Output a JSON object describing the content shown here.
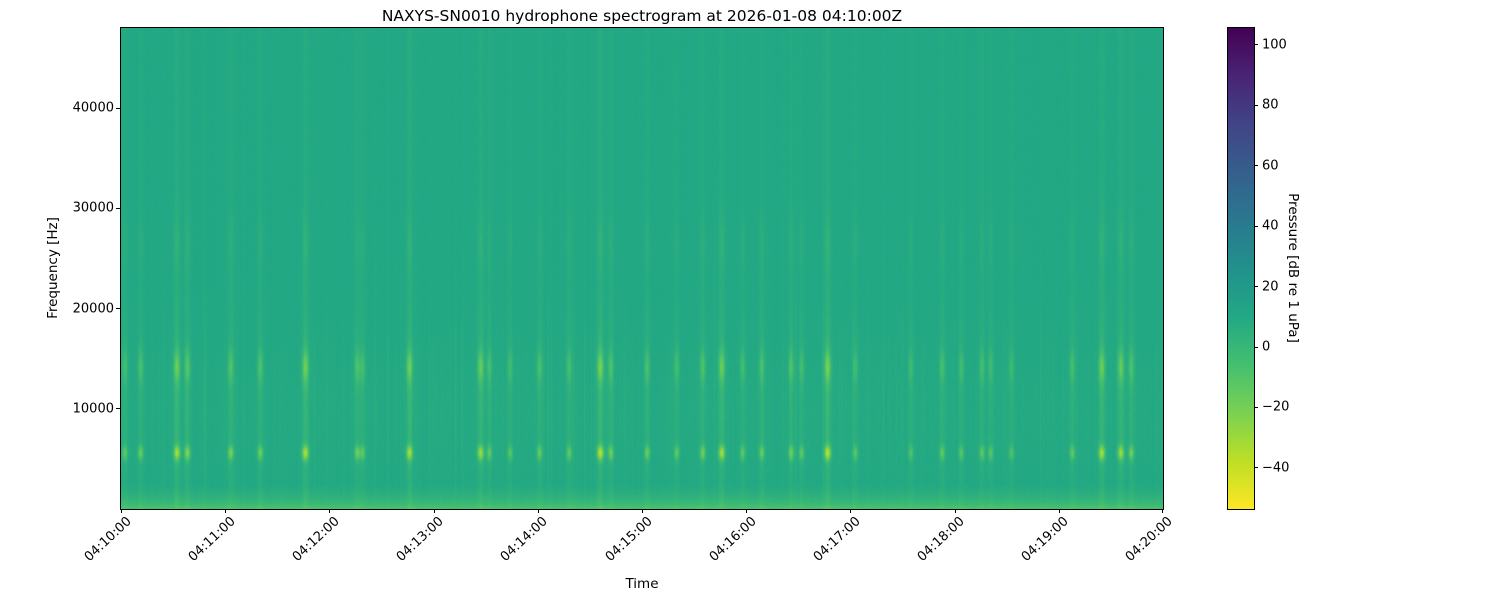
{
  "chart_data": {
    "type": "heatmap",
    "subtype": "spectrogram",
    "title": "NAXYS-SN0010 hydrophone spectrogram at 2026-01-08 04:10:00Z",
    "xlabel": "Time",
    "ylabel": "Frequency [Hz]",
    "x_tick_labels": [
      "04:10:00",
      "04:11:00",
      "04:12:00",
      "04:13:00",
      "04:14:00",
      "04:15:00",
      "04:16:00",
      "04:17:00",
      "04:18:00",
      "04:19:00",
      "04:20:00"
    ],
    "y_tick_values": [
      10000,
      20000,
      30000,
      40000
    ],
    "y_tick_labels": [
      "10000",
      "20000",
      "30000",
      "40000"
    ],
    "freq_range_hz": [
      0,
      48000
    ],
    "duration_s": 600,
    "start_time_label": "04:10:00",
    "grid": false,
    "legend": "none",
    "colorbar": {
      "label": "Pressure [dB re 1 uPa]",
      "tick_values": [
        100,
        80,
        60,
        40,
        20,
        0,
        -20,
        -40
      ],
      "tick_labels": [
        "100",
        "80",
        "60",
        "40",
        "20",
        "0",
        "−20",
        "−40"
      ],
      "vmin": -53.6,
      "vmax": 105.6,
      "colormap": "viridis",
      "colormap_stops": [
        [
          68,
          1,
          84
        ],
        [
          72,
          36,
          117
        ],
        [
          65,
          68,
          135
        ],
        [
          53,
          95,
          141
        ],
        [
          42,
          120,
          142
        ],
        [
          33,
          145,
          140
        ],
        [
          34,
          168,
          132
        ],
        [
          68,
          191,
          112
        ],
        [
          122,
          209,
          81
        ],
        [
          189,
          223,
          38
        ],
        [
          253,
          231,
          37
        ]
      ]
    },
    "background_level_db": 42,
    "bottom_band": {
      "max_freq_hz": 2600,
      "peak_boost_db": 15
    },
    "event_bands_hz": {
      "primary_center": 5600,
      "secondary_center": 14200,
      "tertiary_center": 26500
    },
    "events": [
      [
        2,
        0.5
      ],
      [
        11,
        0.55
      ],
      [
        32,
        0.9
      ],
      [
        38,
        0.7
      ],
      [
        63,
        0.65
      ],
      [
        80,
        0.6
      ],
      [
        106,
        0.95
      ],
      [
        136,
        0.6
      ],
      [
        139,
        0.5
      ],
      [
        166,
        0.9
      ],
      [
        207,
        0.85
      ],
      [
        212,
        0.5
      ],
      [
        224,
        0.45
      ],
      [
        241,
        0.55
      ],
      [
        258,
        0.5
      ],
      [
        276,
        1.0
      ],
      [
        282,
        0.6
      ],
      [
        303,
        0.55
      ],
      [
        320,
        0.5
      ],
      [
        335,
        0.6
      ],
      [
        346,
        0.9
      ],
      [
        358,
        0.5
      ],
      [
        369,
        0.55
      ],
      [
        386,
        0.6
      ],
      [
        392,
        0.5
      ],
      [
        407,
        1.0
      ],
      [
        423,
        0.45
      ],
      [
        455,
        0.4
      ],
      [
        473,
        0.5
      ],
      [
        484,
        0.45
      ],
      [
        496,
        0.5
      ],
      [
        501,
        0.45
      ],
      [
        513,
        0.4
      ],
      [
        548,
        0.5
      ],
      [
        565,
        0.9
      ],
      [
        576,
        0.85
      ],
      [
        582,
        0.6
      ]
    ],
    "seed": 1337
  }
}
